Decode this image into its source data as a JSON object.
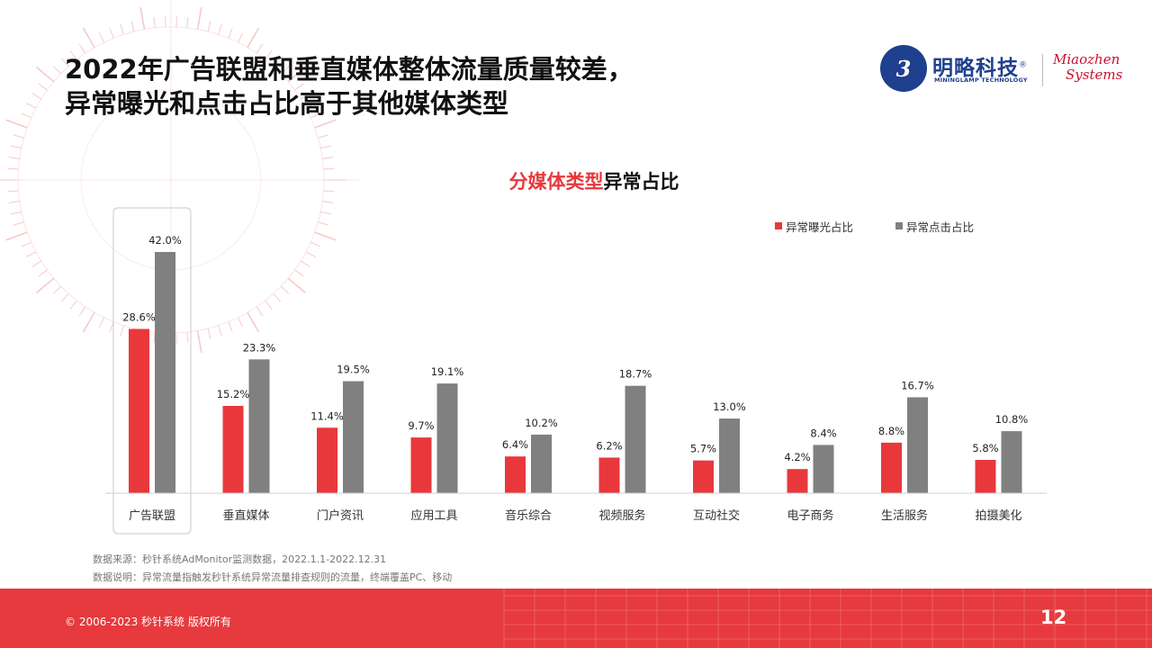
{
  "title_line1": "2022年广告联盟和垂直媒体整体流量质量较差，",
  "title_line2": "异常曝光和点击占比高于其他媒体类型",
  "logo": {
    "mark": "3",
    "brand_cn": "明略科技",
    "registered": "®",
    "brand_en": "MININGLAMP TECHNOLOGY",
    "partner_line1": "Miaozhen",
    "partner_line2": "Systems"
  },
  "chart_data": {
    "type": "bar",
    "title_highlight": "分媒体类型",
    "title_rest": "异常占比",
    "categories": [
      "广告联盟",
      "垂直媒体",
      "门户资讯",
      "应用工具",
      "音乐综合",
      "视频服务",
      "互动社交",
      "电子商务",
      "生活服务",
      "拍摄美化"
    ],
    "series": [
      {
        "name": "异常曝光占比",
        "color": "#e8383c",
        "values": [
          28.6,
          15.2,
          11.4,
          9.7,
          6.4,
          6.2,
          5.7,
          4.2,
          8.8,
          5.8
        ],
        "labels": [
          "28.6%",
          "15.2%",
          "11.4%",
          "9.7%",
          "6.4%",
          "6.2%",
          "5.7%",
          "4.2%",
          "8.8%",
          "5.8%"
        ]
      },
      {
        "name": "异常点击占比",
        "color": "#808080",
        "values": [
          42.0,
          23.3,
          19.5,
          19.1,
          10.2,
          18.7,
          13.0,
          8.4,
          16.7,
          10.8
        ],
        "labels": [
          "42.0%",
          "23.3%",
          "19.5%",
          "19.1%",
          "10.2%",
          "18.7%",
          "13.0%",
          "8.4%",
          "16.7%",
          "10.8%"
        ]
      }
    ],
    "ylim": [
      0,
      42
    ],
    "legend": "top-right",
    "highlighted_category": "广告联盟"
  },
  "source_line1": "数据来源：秒针系统AdMonitor监测数据，2022.1.1-2022.12.31",
  "source_line2": "数据说明：异常流量指触发秒针系统异常流量排查规则的流量，终端覆盖PC、移动",
  "copyright": "© 2006-2023 秒针系统 版权所有",
  "page_number": "12"
}
